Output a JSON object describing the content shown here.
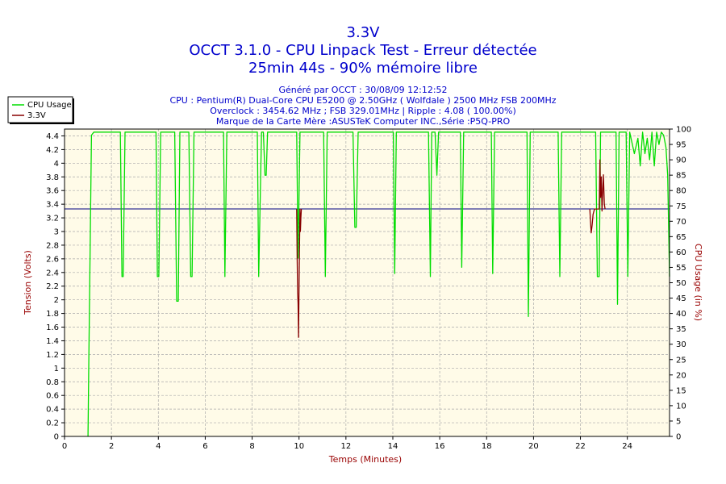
{
  "title_lines": [
    "3.3V",
    "OCCT 3.1.0 - CPU Linpack Test - Erreur détectée",
    "25min 44s - 90% mémoire libre"
  ],
  "info_lines": [
    "Généré par OCCT : 30/08/09 12:12:52",
    "CPU : Pentium(R) Dual-Core CPU E5200 @ 2.50GHz ( Wolfdale ) 2500 MHz FSB 200MHz",
    "Overclock : 3454.62 MHz ; FSB 329.01MHz | Ripple : 4.08 ( 100.00%)",
    "Marque de la Carte Mère :ASUSTeK Computer INC.,Série :P5Q-PRO"
  ],
  "colors": {
    "title": "#0000cc",
    "plot_background": "#fffbe8",
    "grid": "#aaaaaa",
    "cpu_usage": "#00dd00",
    "voltage": "#880000",
    "reference_line": "#000080",
    "axis_title": "#990000"
  },
  "chart_data": {
    "type": "line",
    "xlabel": "Temps (Minutes)",
    "ylabel_left": "Tension (Volts)",
    "ylabel_right": "CPU Usage (in %)",
    "xlim": [
      0,
      25.8
    ],
    "ylim_left": [
      0,
      4.5
    ],
    "ylim_right": [
      0,
      100
    ],
    "x_ticks": [
      "0",
      "2",
      "4",
      "6",
      "8",
      "10",
      "12",
      "14",
      "16",
      "18",
      "20",
      "22",
      "24"
    ],
    "y_left_ticks": [
      "0",
      "0.2",
      "0.4",
      "0.6",
      "0.8",
      "1",
      "1.2",
      "1.4",
      "1.6",
      "1.8",
      "2",
      "2.2",
      "2.4",
      "2.6",
      "2.8",
      "3",
      "3.2",
      "3.4",
      "3.6",
      "3.8",
      "4",
      "4.2",
      "4.4"
    ],
    "y_right_ticks": [
      "0",
      "5",
      "10",
      "15",
      "20",
      "25",
      "30",
      "35",
      "40",
      "45",
      "50",
      "55",
      "60",
      "65",
      "70",
      "75",
      "80",
      "85",
      "90",
      "95",
      "100"
    ],
    "grid": true,
    "legend_position": "top-left",
    "legend": [
      "CPU Usage",
      "3.3V"
    ],
    "reference_line": {
      "axis": "left",
      "value": 3.33
    },
    "series": [
      {
        "name": "CPU Usage",
        "axis": "right",
        "color": "#00dd00",
        "x": [
          1.0,
          1.03,
          1.15,
          1.25,
          1.5,
          2.0,
          2.38,
          2.45,
          2.5,
          2.58,
          3.0,
          3.5,
          3.8,
          3.9,
          3.96,
          4.02,
          4.1,
          4.5,
          4.7,
          4.78,
          4.85,
          4.92,
          5.0,
          5.3,
          5.38,
          5.44,
          5.52,
          6.0,
          6.5,
          6.78,
          6.84,
          6.92,
          7.5,
          8.1,
          8.22,
          8.28,
          8.4,
          8.48,
          8.55,
          8.6,
          8.66,
          9.0,
          9.5,
          9.9,
          9.96,
          10.04,
          10.5,
          11.05,
          11.12,
          11.2,
          11.8,
          12.15,
          12.3,
          12.38,
          12.44,
          12.52,
          13.0,
          13.5,
          14.02,
          14.08,
          14.15,
          15.0,
          15.52,
          15.6,
          15.66,
          15.8,
          15.88,
          15.95,
          16.5,
          16.88,
          16.94,
          17.02,
          17.5,
          18.2,
          18.26,
          18.34,
          19.0,
          19.72,
          19.78,
          19.86,
          20.5,
          21.05,
          21.12,
          21.2,
          21.8,
          22.2,
          22.4,
          22.65,
          22.72,
          22.8,
          22.86,
          22.93,
          23.0,
          23.3,
          23.52,
          23.58,
          23.65,
          23.8,
          23.95,
          24.02,
          24.1,
          24.3,
          24.45,
          24.55,
          24.65,
          24.75,
          24.85,
          24.95,
          25.05,
          25.15,
          25.25,
          25.35,
          25.45,
          25.55,
          25.65,
          25.72,
          25.8
        ],
        "values": [
          0,
          20,
          98,
          99,
          99,
          99,
          99,
          52,
          52,
          99,
          99,
          99,
          99,
          99,
          52,
          52,
          99,
          99,
          99,
          44,
          44,
          99,
          99,
          99,
          52,
          52,
          99,
          99,
          99,
          99,
          52,
          99,
          99,
          99,
          99,
          52,
          99,
          99,
          85,
          85,
          99,
          99,
          99,
          99,
          58,
          99,
          99,
          99,
          52,
          99,
          99,
          99,
          99,
          68,
          68,
          99,
          99,
          99,
          99,
          53,
          99,
          99,
          99,
          52,
          99,
          99,
          85,
          99,
          99,
          99,
          55,
          99,
          99,
          99,
          53,
          99,
          99,
          99,
          39,
          99,
          99,
          99,
          52,
          99,
          99,
          99,
          99,
          99,
          52,
          52,
          99,
          99,
          99,
          99,
          99,
          43,
          99,
          99,
          99,
          52,
          99,
          92,
          97,
          88,
          99,
          92,
          97,
          90,
          99,
          88,
          99,
          95,
          99,
          98,
          94,
          85,
          52
        ]
      },
      {
        "name": "3.3V",
        "axis": "left",
        "color": "#880000",
        "x": [
          9.9,
          9.92,
          9.94,
          9.96,
          9.98,
          10.0,
          10.02,
          10.04,
          10.06,
          10.08,
          10.1,
          22.4,
          22.43,
          22.46,
          22.5,
          22.54,
          22.6,
          22.8,
          22.83,
          22.86,
          22.89,
          22.92,
          22.95,
          22.98,
          23.02,
          23.05
        ],
        "values": [
          3.33,
          2.6,
          2.1,
          1.95,
          1.45,
          2.2,
          2.8,
          3.33,
          3.0,
          3.2,
          3.33,
          3.33,
          3.15,
          2.98,
          3.1,
          3.25,
          3.33,
          3.33,
          4.05,
          3.5,
          3.8,
          3.3,
          3.6,
          3.83,
          3.4,
          3.33
        ]
      }
    ]
  }
}
